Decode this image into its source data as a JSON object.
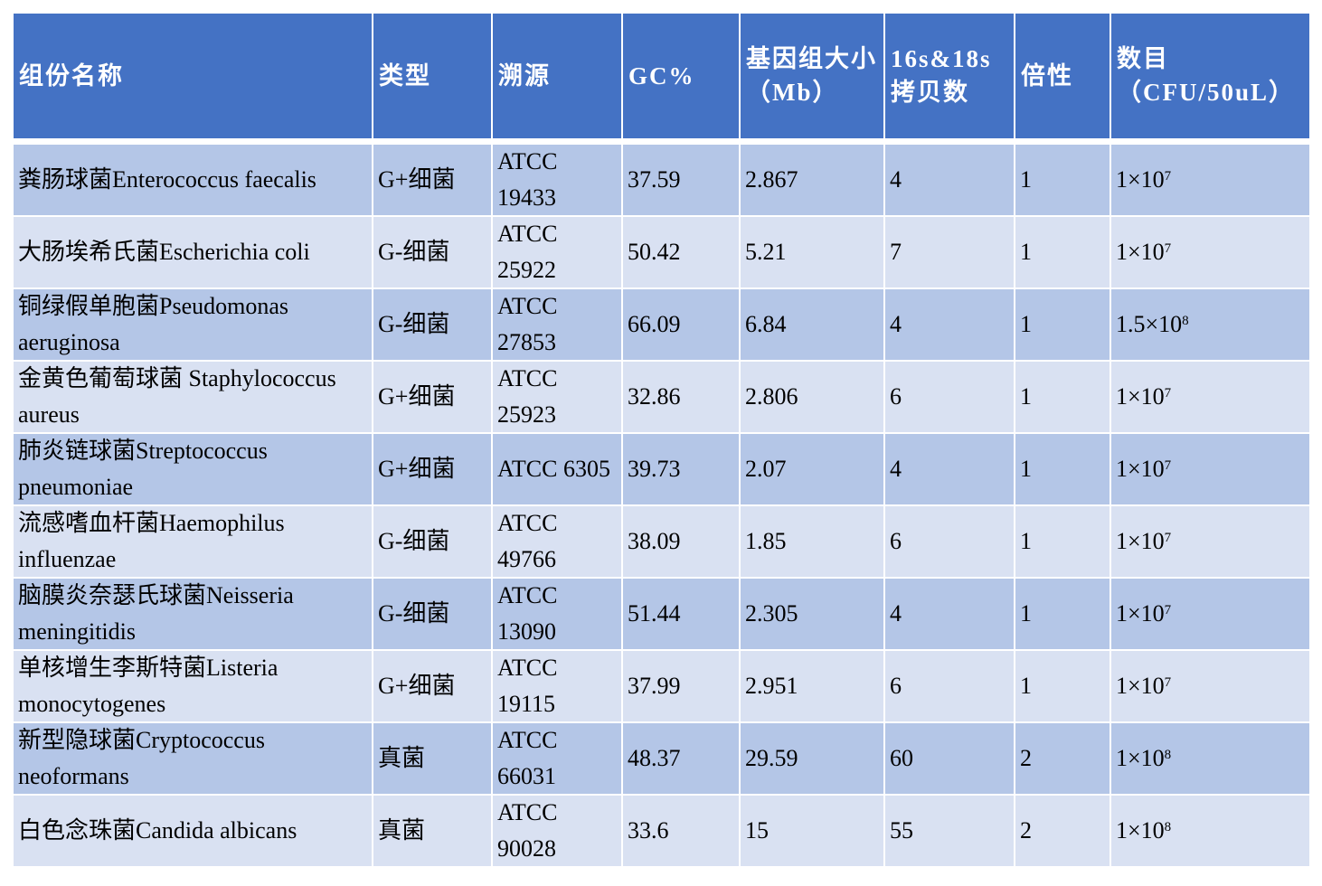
{
  "colors": {
    "header": "#4472C4",
    "row_odd": "#B4C6E7",
    "row_even": "#D9E1F2"
  },
  "headers": [
    "组份名称",
    "类型",
    "溯源",
    "GC%",
    "基因组大小（Mb）",
    "16s&18s拷贝数",
    "倍性",
    "数目（CFU/50uL）"
  ],
  "rows": [
    {
      "name": "粪肠球菌Enterococcus faecalis",
      "type": "G+细菌",
      "source": "ATCC 19433",
      "gc": "37.59",
      "size": "2.867",
      "copies": "4",
      "ploidy": "1",
      "count_base": "1×10",
      "count_exp": "7"
    },
    {
      "name": "大肠埃希氏菌Escherichia coli",
      "type": "G-细菌",
      "source": "ATCC 25922",
      "gc": "50.42",
      "size": "5.21",
      "copies": "7",
      "ploidy": "1",
      "count_base": "1×10",
      "count_exp": "7"
    },
    {
      "name": "铜绿假单胞菌Pseudomonas aeruginosa",
      "type": "G-细菌",
      "source": "ATCC 27853",
      "gc": "66.09",
      "size": "6.84",
      "copies": "4",
      "ploidy": "1",
      "count_base": "1.5×10",
      "count_exp": "8"
    },
    {
      "name": "金黄色葡萄球菌 Staphylococcus aureus",
      "type": "G+细菌",
      "source": "ATCC 25923",
      "gc": "32.86",
      "size": "2.806",
      "copies": "6",
      "ploidy": "1",
      "count_base": "1×10",
      "count_exp": "7"
    },
    {
      "name": "肺炎链球菌Streptococcus pneumoniae",
      "type": "G+细菌",
      "source": "ATCC 6305",
      "gc": "39.73",
      "size": "2.07",
      "copies": "4",
      "ploidy": "1",
      "count_base": "1×10",
      "count_exp": "7"
    },
    {
      "name": "流感嗜血杆菌Haemophilus influenzae",
      "type": "G-细菌",
      "source": "ATCC 49766",
      "gc": "38.09",
      "size": "1.85",
      "copies": "6",
      "ploidy": "1",
      "count_base": "1×10",
      "count_exp": "7"
    },
    {
      "name": "脑膜炎奈瑟氏球菌Neisseria meningitidis",
      "type": "G-细菌",
      "source": "ATCC 13090",
      "gc": "51.44",
      "size": "2.305",
      "copies": "4",
      "ploidy": "1",
      "count_base": "1×10",
      "count_exp": "7"
    },
    {
      "name": "单核增生李斯特菌Listeria monocytogenes",
      "type": "G+细菌",
      "source": "ATCC 19115",
      "gc": "37.99",
      "size": "2.951",
      "copies": "6",
      "ploidy": "1",
      "count_base": "1×10",
      "count_exp": "7"
    },
    {
      "name": "新型隐球菌Cryptococcus neoformans",
      "type": "真菌",
      "source": "ATCC 66031",
      "gc": "48.37",
      "size": "29.59",
      "copies": "60",
      "ploidy": "2",
      "count_base": "1×10",
      "count_exp": "8"
    },
    {
      "name": "白色念珠菌Candida albicans",
      "type": "真菌",
      "source": "ATCC 90028",
      "gc": "33.6",
      "size": "15",
      "copies": "55",
      "ploidy": "2",
      "count_base": "1×10",
      "count_exp": "8"
    }
  ]
}
